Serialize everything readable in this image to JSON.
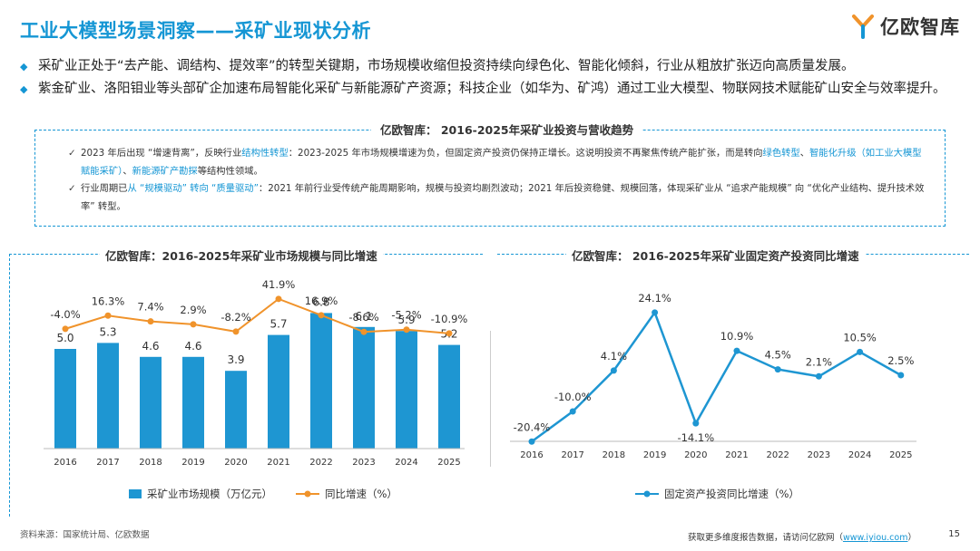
{
  "header": {
    "title": "工业大模型场景洞察——采矿业现状分析",
    "logo_text": "亿欧智库"
  },
  "bullets": [
    "采矿业正处于“去产能、调结构、提效率”的转型关键期，市场规模收缩但投资持续向绿色化、智能化倾斜，行业从粗放扩张迈向高质量发展。",
    "紫金矿业、洛阳钼业等头部矿企加速布局智能化采矿与新能源矿产资源；科技企业（如华为、矿鸿）通过工业大模型、物联网技术赋能矿山安全与效率提升。"
  ],
  "trend": {
    "title": "亿欧智库： 2016-2025年采矿业投资与营收趋势",
    "note1_a": "2023 年后出现 “增速背离”，反映行业",
    "note1_hl1": "结构性转型",
    "note1_b": "：2023-2025 年市场规模增速为负，但固定资产投资仍保持正增长。这说明投资不再聚焦传统产能扩张，而是转向",
    "note1_hl2": "绿色转型",
    "note1_sep1": "、",
    "note1_hl3": "智能化升级",
    "note1_hl4": "（如工业大模型赋能采矿）",
    "note1_sep2": "、",
    "note1_hl5": "新能源矿产勘探",
    "note1_c": "等结构性领域。",
    "note2_a": "行业周期已",
    "note2_hl": "从 “规模驱动” 转向 “质量驱动”",
    "note2_b": "：2021 年前行业受传统产能周期影响，规模与投资均剧烈波动；2021 年后投资稳健、规模回落，体现采矿业从 “追求产能规模” 向 “优化产业结构、提升技术效率” 转型。"
  },
  "colors": {
    "accent": "#1596d4",
    "bar": "#1e96d2",
    "orange": "#f0932b",
    "text": "#333333"
  },
  "chart_data": [
    {
      "type": "bar",
      "title": "亿欧智库：2016-2025年采矿业市场规模与同比增速",
      "categories": [
        "2016",
        "2017",
        "2018",
        "2019",
        "2020",
        "2021",
        "2022",
        "2023",
        "2024",
        "2025"
      ],
      "series": [
        {
          "name": "采矿业市场规模（万亿元）",
          "type": "bar",
          "values": [
            5.0,
            5.3,
            4.6,
            4.6,
            3.9,
            5.7,
            6.8,
            6.1,
            5.9,
            5.2
          ],
          "labels": [
            "5.0",
            "5.3",
            "4.6",
            "4.6",
            "3.9",
            "5.7",
            "6.8",
            "6.1",
            "5.9",
            "5.2"
          ]
        },
        {
          "name": "同比增速（%）",
          "type": "line",
          "values": [
            -4.0,
            16.3,
            7.4,
            2.9,
            -8.2,
            41.9,
            16.9,
            -8.6,
            -5.2,
            -10.9
          ],
          "labels": [
            "-4.0%",
            "16.3%",
            "7.4%",
            "2.9%",
            "-8.2%",
            "41.9%",
            "16.9%",
            "-8.6%",
            "-5.2%",
            "-10.9%"
          ]
        }
      ],
      "legend": "bottom"
    },
    {
      "type": "line",
      "title": "亿欧智库： 2016-2025年采矿业固定资产投资同比增速",
      "categories": [
        "2016",
        "2017",
        "2018",
        "2019",
        "2020",
        "2021",
        "2022",
        "2023",
        "2024",
        "2025"
      ],
      "series": [
        {
          "name": "固定资产投资同比增速（%）",
          "values": [
            -20.4,
            -10.0,
            4.1,
            24.1,
            -14.1,
            10.9,
            4.5,
            2.1,
            10.5,
            2.5
          ],
          "labels": [
            "-20.4%",
            "-10.0%",
            "4.1%",
            "24.1%",
            "-14.1%",
            "10.9%",
            "4.5%",
            "2.1%",
            "10.5%",
            "2.5%"
          ]
        }
      ],
      "legend": "bottom"
    }
  ],
  "footer": {
    "source": "资料来源：国家统计局、亿欧数据",
    "more_prefix": "获取更多维度报告数据，请访问亿欧网（",
    "url": "www.iyiou.com",
    "more_suffix": "）",
    "page": "15"
  }
}
